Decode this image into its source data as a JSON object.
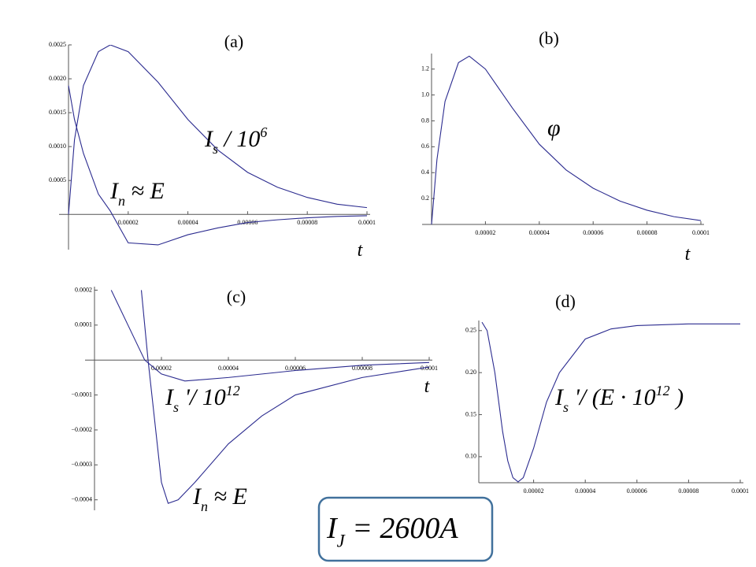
{
  "chart_data": [
    {
      "type": "line",
      "title": "(a)",
      "xlabel": "t",
      "x": [
        0,
        2e-06,
        5e-06,
        1e-05,
        1.4e-05,
        2e-05,
        3e-05,
        4e-05,
        5e-05,
        6e-05,
        7e-05,
        8e-05,
        9e-05,
        0.0001
      ],
      "series": [
        {
          "color": "#2b2b8f",
          "values": [
            0,
            0.0011,
            0.0019,
            0.0024,
            0.0025,
            0.0024,
            0.00195,
            0.0014,
            0.00095,
            0.00062,
            0.0004,
            0.00025,
            0.00015,
            0.0001
          ]
        },
        {
          "color": "#2b2b8f",
          "values": [
            0.0019,
            0.0014,
            0.0009,
            0.0003,
            5e-05,
            -0.00042,
            -0.00045,
            -0.0003,
            -0.0002,
            -0.00012,
            -8e-05,
            -5e-05,
            -3e-05,
            -2e-05
          ]
        }
      ],
      "xlim": [
        0,
        0.0001
      ],
      "ylim": [
        -0.00052,
        0.0025
      ],
      "xticks": [
        2e-05,
        4e-05,
        6e-05,
        8e-05,
        0.0001
      ],
      "yticks": [
        0.0005,
        {
          "value": 0.001,
          "label": "0.0010"
        },
        0.0015,
        {
          "value": 0.002,
          "label": "0.0020"
        },
        0.0025
      ],
      "annotations": [
        {
          "parts": [
            {
              "t": "I"
            },
            {
              "sub": "s"
            },
            {
              "t": " / 10"
            },
            {
              "sup": "6"
            }
          ]
        },
        {
          "parts": [
            {
              "t": "I"
            },
            {
              "sub": "n"
            },
            {
              "t": " ≈ E"
            }
          ]
        }
      ]
    },
    {
      "type": "line",
      "title": "(b)",
      "xlabel": "t",
      "x": [
        0,
        2e-06,
        5e-06,
        1e-05,
        1.4e-05,
        2e-05,
        3e-05,
        4e-05,
        5e-05,
        6e-05,
        7e-05,
        8e-05,
        9e-05,
        0.0001
      ],
      "series": [
        {
          "color": "#2b2b8f",
          "values": [
            0,
            0.5,
            0.95,
            1.25,
            1.3,
            1.2,
            0.9,
            0.62,
            0.42,
            0.28,
            0.18,
            0.11,
            0.06,
            0.03
          ]
        }
      ],
      "xlim": [
        0,
        0.0001
      ],
      "ylim": [
        0,
        1.32
      ],
      "xticks": [
        2e-05,
        4e-05,
        6e-05,
        8e-05,
        0.0001
      ],
      "yticks": [
        0.2,
        0.4,
        0.6,
        0.8,
        {
          "value": 1,
          "label": "1.0"
        },
        1.2
      ],
      "annotations": [
        {
          "parts": [
            {
              "t": "φ"
            }
          ]
        }
      ]
    },
    {
      "type": "line",
      "title": "(c)",
      "xlabel": "t",
      "series": [
        {
          "color": "#2b2b8f",
          "x": [
            5e-06,
            1e-05,
            1.5e-05,
            2e-05,
            2.7e-05,
            4e-05,
            6e-05,
            8e-05,
            0.0001
          ],
          "values": [
            0.0002,
            0.0001,
            0,
            -4e-05,
            -6e-05,
            -5e-05,
            -3e-05,
            -1.5e-05,
            -7e-06
          ]
        },
        {
          "color": "#2b2b8f",
          "x": [
            1.4e-05,
            1.6e-05,
            2e-05,
            2.2e-05,
            2.5e-05,
            3e-05,
            4e-05,
            5e-05,
            6e-05,
            8e-05,
            0.0001
          ],
          "values": [
            0.0002,
            0,
            -0.00035,
            -0.00041,
            -0.0004,
            -0.00035,
            -0.00024,
            -0.00016,
            -0.0001,
            -5e-05,
            -2e-05
          ]
        }
      ],
      "xlim": [
        0,
        0.0001
      ],
      "ylim": [
        -0.00043,
        0.00021
      ],
      "xticks": [
        2e-05,
        4e-05,
        6e-05,
        8e-05,
        0.0001
      ],
      "yticks": [
        0.0002,
        0.0001,
        {
          "value": -0.0001,
          "label": "−0.0001"
        },
        {
          "value": -0.0002,
          "label": "−0.0002"
        },
        {
          "value": -0.0003,
          "label": "−0.0003"
        },
        {
          "value": -0.0004,
          "label": "−0.0004"
        }
      ],
      "annotations": [
        {
          "parts": [
            {
              "t": "I"
            },
            {
              "sub": "s"
            },
            {
              "t": " '/ 10"
            },
            {
              "sup": "12"
            }
          ]
        },
        {
          "parts": [
            {
              "t": "I"
            },
            {
              "sub": "n"
            },
            {
              "t": " ≈ E"
            }
          ]
        }
      ]
    },
    {
      "type": "line",
      "title": "(d)",
      "frame": true,
      "x": [
        0,
        2e-06,
        5e-06,
        8e-06,
        1e-05,
        1.2e-05,
        1.4e-05,
        1.6e-05,
        2e-05,
        2.5e-05,
        3e-05,
        4e-05,
        5e-05,
        6e-05,
        8e-05,
        0.0001
      ],
      "series": [
        {
          "color": "#2b2b8f",
          "values": [
            0.26,
            0.25,
            0.2,
            0.13,
            0.095,
            0.075,
            0.07,
            0.075,
            0.11,
            0.165,
            0.2,
            0.24,
            0.252,
            0.256,
            0.258,
            0.258
          ]
        }
      ],
      "xlim": [
        0,
        0.0001
      ],
      "ylim": [
        0.069,
        0.262
      ],
      "xticks": [
        2e-05,
        4e-05,
        6e-05,
        8e-05,
        0.0001
      ],
      "yticks": [
        {
          "value": 0.1,
          "label": "0.10"
        },
        0.15,
        {
          "value": 0.2,
          "label": "0.20"
        },
        0.25
      ],
      "annotations": [
        {
          "parts": [
            {
              "t": "I"
            },
            {
              "sub": "s"
            },
            {
              "t": " '/ (E · 10"
            },
            {
              "sup": "12"
            },
            {
              "t": " )"
            }
          ]
        }
      ]
    }
  ],
  "caption": {
    "parts": [
      {
        "t": "I"
      },
      {
        "sub": "J"
      },
      {
        "t": " = 2600A"
      }
    ]
  }
}
